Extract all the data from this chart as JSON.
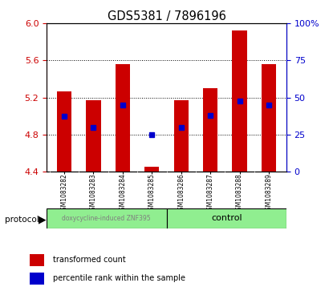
{
  "title": "GDS5381 / 7896196",
  "samples": [
    "GSM1083282",
    "GSM1083283",
    "GSM1083284",
    "GSM1083285",
    "GSM1083286",
    "GSM1083287",
    "GSM1083288",
    "GSM1083289"
  ],
  "bar_bottoms": [
    4.4,
    4.4,
    4.4,
    4.4,
    4.4,
    4.4,
    4.4,
    4.4
  ],
  "bar_tops": [
    5.27,
    5.17,
    5.56,
    4.45,
    5.17,
    5.3,
    5.92,
    5.56
  ],
  "blue_values": [
    5.0,
    4.88,
    5.12,
    4.8,
    4.88,
    5.01,
    5.16,
    5.12
  ],
  "ylim_left": [
    4.4,
    6.0
  ],
  "ylim_right": [
    0,
    100
  ],
  "yticks_left": [
    4.4,
    4.8,
    5.2,
    5.6,
    6.0
  ],
  "yticks_right": [
    0,
    25,
    50,
    75,
    100
  ],
  "bar_color": "#cc0000",
  "blue_color": "#0000cc",
  "background_color": "#ffffff",
  "plot_bg_color": "#ffffff",
  "grid_color": "#000000",
  "group1_label": "doxycycline-induced ZNF395",
  "group2_label": "control",
  "group1_color": "#90ee90",
  "group2_color": "#90ee90",
  "group1_indices": [
    0,
    1,
    2,
    3
  ],
  "group2_indices": [
    4,
    5,
    6,
    7
  ],
  "protocol_label": "protocol",
  "legend_red": "transformed count",
  "legend_blue": "percentile rank within the sample",
  "tick_label_color_left": "#cc0000",
  "tick_label_color_right": "#0000cc",
  "bar_width": 0.5,
  "blue_marker_size": 5
}
